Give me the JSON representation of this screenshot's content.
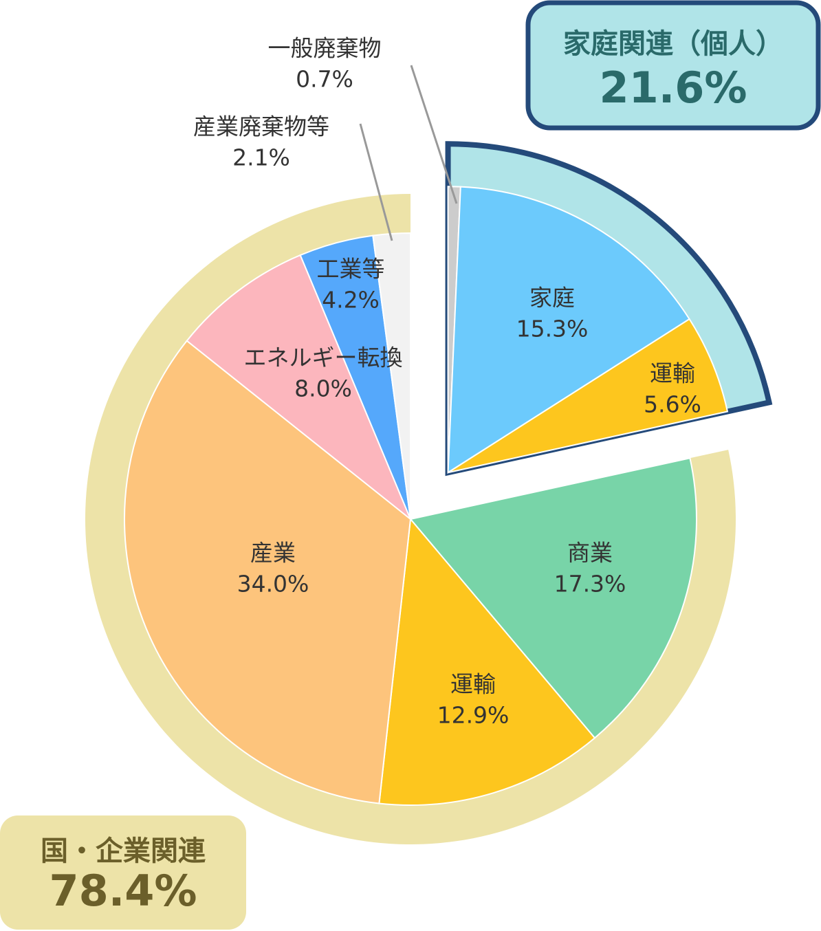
{
  "chart_data": {
    "type": "pie",
    "groups": [
      {
        "name": "家庭関連（個人）",
        "value": 21.6,
        "value_label": "21.6%",
        "categories": [
          "一般廃棄物",
          "家庭",
          "運輸"
        ],
        "values": [
          0.7,
          15.3,
          5.6
        ],
        "value_labels": [
          "0.7%",
          "15.3%",
          "5.6%"
        ],
        "colors": [
          "#cccccc",
          "#6ccafc",
          "#fdc61e"
        ]
      },
      {
        "name": "国・企業関連",
        "value": 78.4,
        "value_label": "78.4%",
        "categories": [
          "商業",
          "運輸",
          "産業",
          "エネルギー転換",
          "工業等",
          "産業廃棄物等"
        ],
        "values": [
          17.3,
          12.9,
          34.0,
          8.0,
          4.2,
          2.1
        ],
        "value_labels": [
          "17.3%",
          "12.9%",
          "34.0%",
          "8.0%",
          "4.2%",
          "2.1%"
        ],
        "colors": [
          "#78d4a8",
          "#fdc61e",
          "#fdc47c",
          "#fcb6bd",
          "#55a8fb",
          "#f2f2f2"
        ]
      }
    ]
  }
}
